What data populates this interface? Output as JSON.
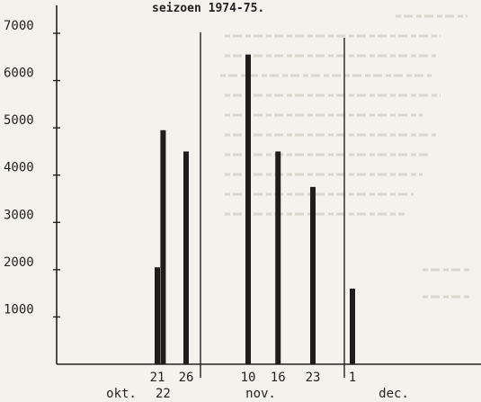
{
  "chart_data": {
    "type": "bar",
    "title": "seizoen 1974-75.",
    "ylim": [
      0,
      7000
    ],
    "yticks": [
      1000,
      2000,
      3000,
      4000,
      5000,
      6000,
      7000
    ],
    "bars": [
      {
        "month": "okt.",
        "day": 21,
        "label": "21",
        "value": 2050
      },
      {
        "month": "okt.",
        "day": 22,
        "label": "22",
        "value": 4950
      },
      {
        "month": "okt.",
        "day": 26,
        "label": "26",
        "value": 4500
      },
      {
        "month": "nov.",
        "day": 10,
        "label": "10",
        "value": 6550
      },
      {
        "month": "nov.",
        "day": 16,
        "label": "16",
        "value": 4500
      },
      {
        "month": "nov.",
        "day": 23,
        "label": "23",
        "value": 3750
      },
      {
        "month": "dec.",
        "day": 1,
        "label": "1",
        "value": 1600
      }
    ],
    "months": [
      "okt.",
      "nov.",
      "dec."
    ],
    "grid": false,
    "legend": "none",
    "bar_color": "#1e1e1e"
  }
}
